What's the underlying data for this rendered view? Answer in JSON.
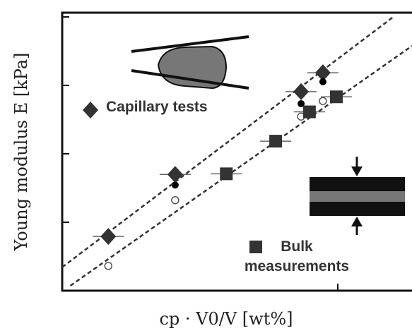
{
  "chart_data": {
    "type": "scatter",
    "x_label": "cp · V0/V [wt%]",
    "y_label": "Young modulus E [kPa]",
    "log_x": true,
    "log_y": true,
    "xlim": [
      0.1,
      1.87
    ],
    "ylim": [
      0.01,
      100
    ],
    "xticks": [
      1
    ],
    "yticks": [
      0.1,
      1,
      10,
      100
    ],
    "series": [
      {
        "name": "Capillary tests",
        "marker": "diamond",
        "color": "#333333",
        "x": [
          0.147,
          0.257,
          0.736,
          0.883
        ],
        "values": [
          0.062,
          0.5,
          8.1,
          15.3
        ]
      },
      {
        "marker": "dot",
        "color": "#000000",
        "x": [
          0.257,
          0.736,
          0.883
        ],
        "values": [
          0.35,
          5.4,
          11.3
        ]
      },
      {
        "marker": "circle",
        "color": "#555555",
        "x": [
          0.147,
          0.257,
          0.736,
          0.883
        ],
        "values": [
          0.023,
          0.21,
          3.5,
          5.9
        ]
      },
      {
        "name": "Bulk measurements",
        "marker": "square",
        "color": "#333333",
        "x": [
          0.394,
          0.595,
          0.789,
          0.988
        ],
        "values": [
          0.51,
          1.53,
          4.1,
          6.8
        ]
      },
      {
        "marker": "dashed-line",
        "color": "#333333",
        "x": [
          0.1,
          1.59
        ],
        "values": [
          0.022,
          100
        ]
      },
      {
        "marker": "dashed-line",
        "color": "#333333",
        "x": [
          0.107,
          1.86
        ],
        "values": [
          0.0118,
          37.8
        ]
      }
    ]
  }
}
